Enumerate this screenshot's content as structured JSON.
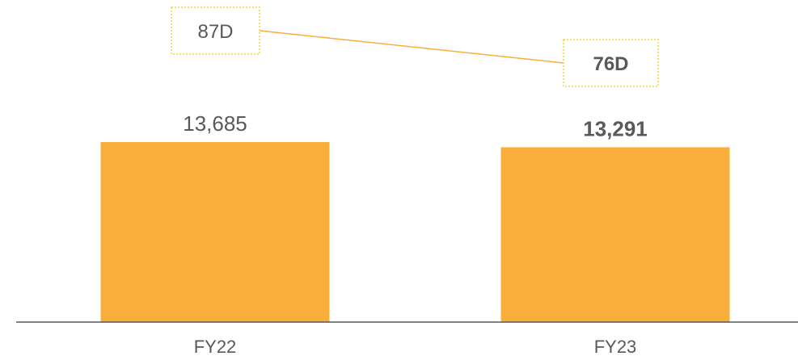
{
  "chart_data": {
    "type": "bar",
    "categories": [
      "FY22",
      "FY23"
    ],
    "series": [
      {
        "type": "bar",
        "values": [
          13685,
          13291
        ],
        "value_labels": [
          "13,685",
          "13,291"
        ],
        "label_bold": [
          false,
          true
        ],
        "color": "#F9AE3C"
      },
      {
        "type": "line",
        "values": [
          87,
          76
        ],
        "value_labels": [
          "87D",
          "76D"
        ],
        "label_bold": [
          false,
          true
        ],
        "color": "#F9AE3C",
        "label_box_style": "dotted",
        "label_box_color": "#F5D43A"
      }
    ],
    "title": "",
    "xlabel": "",
    "ylabel": "",
    "grid": false,
    "legend": "none",
    "axis_color": "#595959",
    "text_color": "#595959"
  }
}
